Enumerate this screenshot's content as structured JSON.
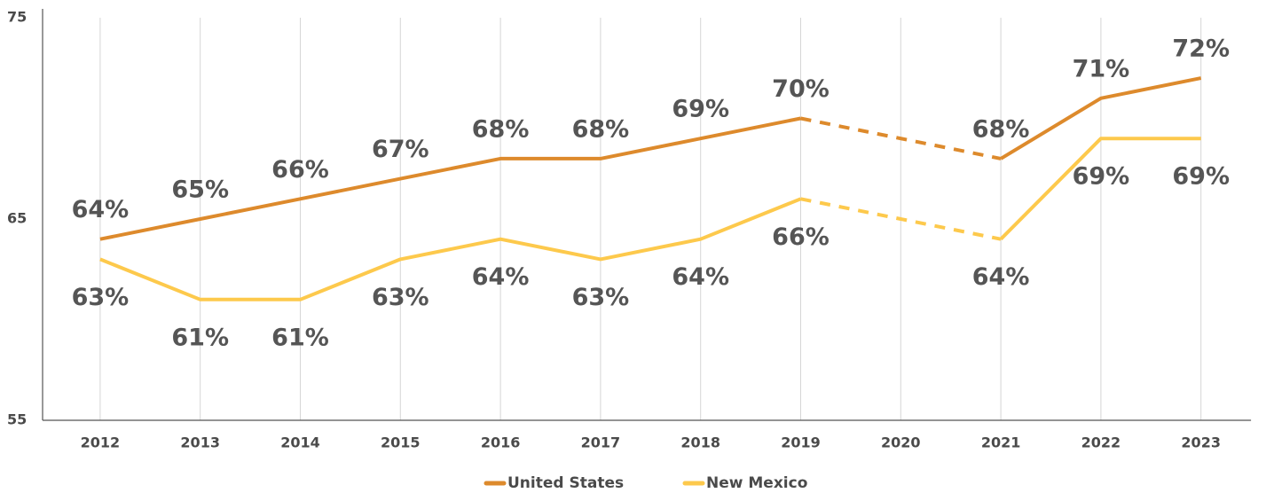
{
  "chart_data": {
    "type": "line",
    "categories": [
      "2012",
      "2013",
      "2014",
      "2015",
      "2016",
      "2017",
      "2018",
      "2019",
      "2020",
      "2021",
      "2022",
      "2023"
    ],
    "series": [
      {
        "name": "United States",
        "color": "#dd8a2c",
        "values": [
          64,
          65,
          66,
          67,
          68,
          68,
          69,
          70,
          null,
          68,
          71,
          72
        ],
        "value_labels": [
          "64%",
          "65%",
          "66%",
          "67%",
          "68%",
          "68%",
          "69%",
          "70%",
          null,
          "68%",
          "71%",
          "72%"
        ]
      },
      {
        "name": "New Mexico",
        "color": "#fdc94c",
        "values": [
          63,
          61,
          61,
          63,
          64,
          63,
          64,
          66,
          null,
          64,
          69,
          69
        ],
        "value_labels": [
          "63%",
          "61%",
          "61%",
          "63%",
          "64%",
          "63%",
          "64%",
          "66%",
          null,
          "64%",
          "69%",
          "69%"
        ]
      }
    ],
    "ylim": [
      55,
      75
    ],
    "yticks": [
      55,
      65,
      75
    ],
    "grid": true,
    "legend": "bottom"
  }
}
